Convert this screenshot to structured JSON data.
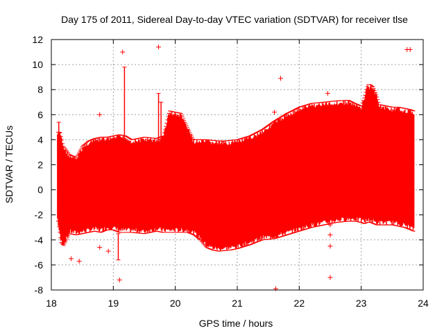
{
  "chart_data": {
    "type": "scatter",
    "title": "Day 175 of 2011, Sidereal Day-to-day VTEC variation (SDTVAR) for receiver tlse",
    "xlabel": "GPS time / hours",
    "ylabel": "SDTVAR / TECUs",
    "xlim": [
      18,
      24
    ],
    "ylim": [
      -8,
      12
    ],
    "xticks": [
      18,
      19,
      20,
      21,
      22,
      23,
      24
    ],
    "yticks": [
      -8,
      -6,
      -4,
      -2,
      0,
      2,
      4,
      6,
      8,
      10,
      12
    ],
    "grid": true,
    "series_color": "#ff0000",
    "envelope": {
      "x": [
        18.1,
        18.15,
        18.2,
        18.3,
        18.4,
        18.5,
        18.6,
        18.7,
        18.8,
        18.9,
        19.0,
        19.1,
        19.2,
        19.3,
        19.5,
        19.7,
        19.8,
        19.9,
        20.0,
        20.1,
        20.2,
        20.3,
        20.4,
        20.5,
        20.6,
        20.7,
        20.8,
        20.9,
        21.0,
        21.2,
        21.4,
        21.6,
        21.8,
        22.0,
        22.2,
        22.4,
        22.6,
        22.8,
        22.9,
        23.0,
        23.05,
        23.1,
        23.15,
        23.2,
        23.25,
        23.3,
        23.4,
        23.5,
        23.6,
        23.7,
        23.8,
        23.85
      ],
      "upper": [
        4.6,
        4.6,
        3.5,
        2.8,
        2.6,
        3.5,
        3.9,
        4.1,
        4.2,
        4.2,
        4.3,
        4.4,
        4.3,
        4.0,
        4.2,
        4.1,
        4.3,
        6.3,
        6.2,
        6.1,
        5.0,
        4.0,
        4.0,
        4.0,
        3.95,
        3.9,
        3.9,
        3.95,
        4.0,
        4.3,
        4.8,
        5.5,
        6.1,
        6.6,
        6.9,
        7.0,
        7.1,
        7.15,
        6.9,
        6.7,
        7.5,
        8.4,
        8.4,
        8.2,
        7.6,
        6.8,
        6.7,
        6.6,
        6.6,
        6.5,
        6.4,
        6.3
      ],
      "lower": [
        -2.5,
        -4.2,
        -4.5,
        -3.5,
        -3.6,
        -3.5,
        -3.4,
        -3.3,
        -3.4,
        -3.2,
        -3.2,
        -3.4,
        -3.4,
        -3.4,
        -3.5,
        -3.3,
        -3.4,
        -3.4,
        -3.4,
        -3.4,
        -3.4,
        -3.6,
        -4.0,
        -4.6,
        -4.8,
        -4.9,
        -4.85,
        -4.8,
        -4.7,
        -4.4,
        -4.0,
        -3.9,
        -3.6,
        -3.3,
        -3.0,
        -2.8,
        -2.6,
        -2.5,
        -2.5,
        -2.6,
        -2.7,
        -2.6,
        -2.6,
        -2.7,
        -2.8,
        -2.8,
        -2.8,
        -2.8,
        -2.9,
        -3.0,
        -3.2,
        -3.3
      ]
    },
    "spikes": [
      {
        "x": 18.12,
        "lo": -2.5,
        "hi": 5.4
      },
      {
        "x": 19.08,
        "lo": -5.6,
        "hi": -3.5
      },
      {
        "x": 19.18,
        "lo": 4.0,
        "hi": 9.8
      },
      {
        "x": 19.73,
        "lo": 4.0,
        "hi": 7.7
      },
      {
        "x": 19.77,
        "lo": 4.0,
        "hi": 7.0
      }
    ],
    "outliers": [
      {
        "x": 18.32,
        "y": -5.5
      },
      {
        "x": 18.45,
        "y": -5.7
      },
      {
        "x": 18.78,
        "y": 6.0
      },
      {
        "x": 18.78,
        "y": -4.6
      },
      {
        "x": 18.92,
        "y": -4.9
      },
      {
        "x": 19.1,
        "y": -7.2
      },
      {
        "x": 19.15,
        "y": 11.0
      },
      {
        "x": 19.73,
        "y": 11.4
      },
      {
        "x": 21.6,
        "y": 6.2
      },
      {
        "x": 21.62,
        "y": -7.9
      },
      {
        "x": 21.7,
        "y": 8.9
      },
      {
        "x": 22.46,
        "y": 7.7
      },
      {
        "x": 22.46,
        "y": -2.5
      },
      {
        "x": 22.5,
        "y": -2.8
      },
      {
        "x": 22.5,
        "y": -3.6
      },
      {
        "x": 22.5,
        "y": -4.5
      },
      {
        "x": 22.5,
        "y": -7.0
      },
      {
        "x": 23.74,
        "y": 11.2
      },
      {
        "x": 23.79,
        "y": 11.2
      }
    ]
  }
}
